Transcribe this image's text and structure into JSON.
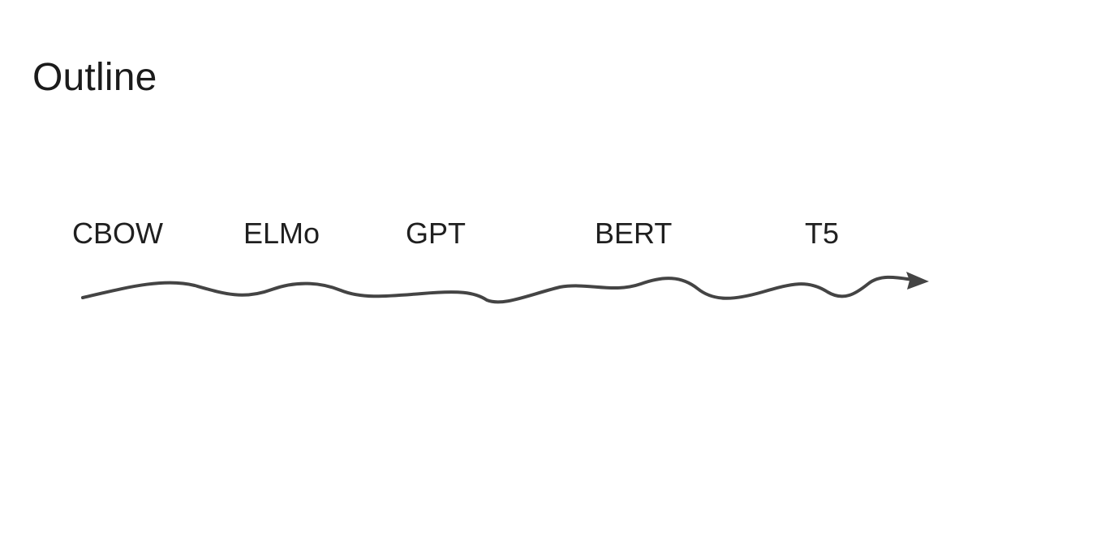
{
  "slide": {
    "title": "Outline",
    "timeline": {
      "items": [
        {
          "label": "CBOW"
        },
        {
          "label": "ELMo"
        },
        {
          "label": "GPT"
        },
        {
          "label": "BERT"
        },
        {
          "label": "T5"
        }
      ],
      "line_color": "#444444"
    }
  }
}
